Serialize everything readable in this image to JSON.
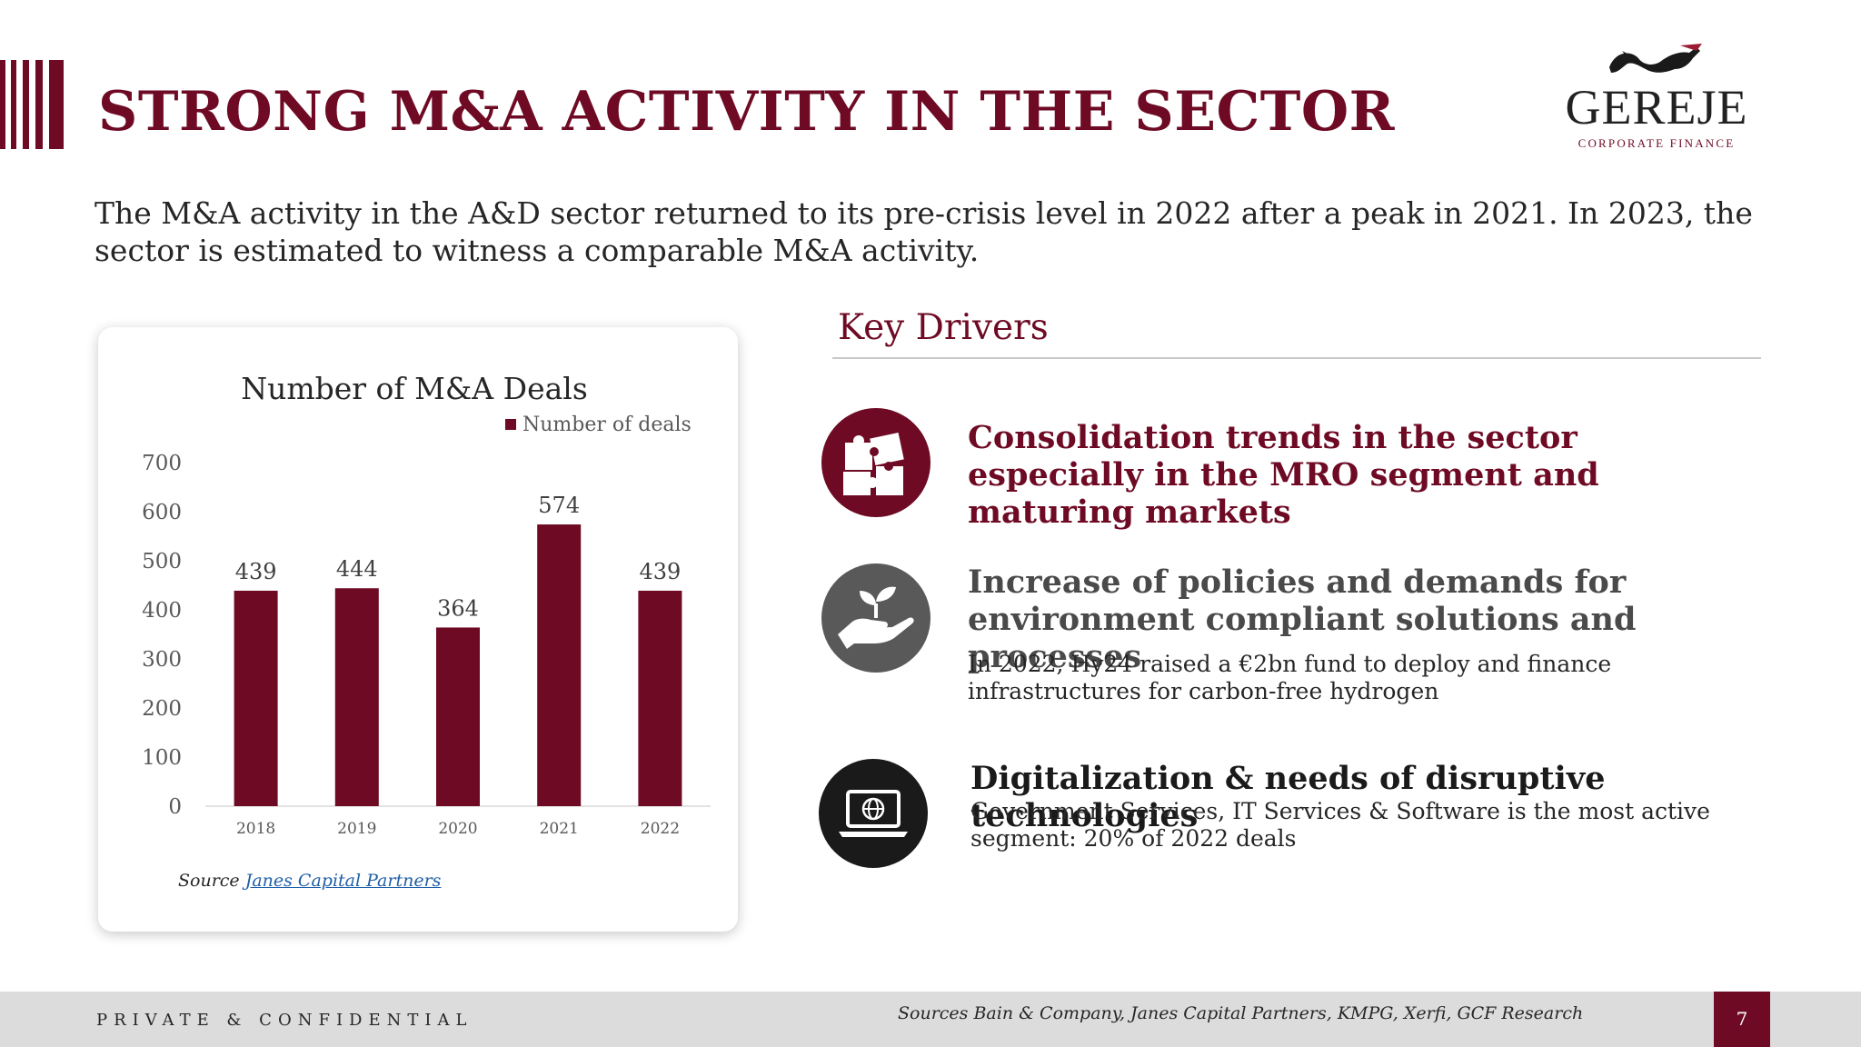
{
  "title": "STRONG M&A ACTIVITY IN THE SECTOR",
  "logo": {
    "brand": "GEREJE",
    "subtitle": "CORPORATE FINANCE"
  },
  "intro": "The M&A activity in the A&D sector returned to its pre-crisis level in 2022 after a peak in 2021. In 2023, the sector is estimated to witness a comparable M&A activity.",
  "chart_source": {
    "prefix": "Source",
    "link": "Janes Capital Partners"
  },
  "chart_data": {
    "type": "bar",
    "title": "Number of M&A Deals",
    "legend": "Number of deals",
    "legend_position": "top-right",
    "categories": [
      "2018",
      "2019",
      "2020",
      "2021",
      "2022"
    ],
    "values": [
      439,
      444,
      364,
      574,
      439
    ],
    "ylim": [
      0,
      700
    ],
    "yticks": [
      "0",
      "100",
      "200",
      "300",
      "400",
      "500",
      "600",
      "700"
    ],
    "bar_color": "#6e0a24",
    "grid": false
  },
  "drivers": {
    "title": "Key Drivers",
    "items": [
      {
        "icon": "puzzle-icon",
        "heading": "Consolidation trends in the sector especially in the MRO segment and maturing markets",
        "body": "",
        "color": "#6e0a24"
      },
      {
        "icon": "plant-hand-icon",
        "heading": "Increase of policies and demands for environment compliant solutions and processes",
        "body": "In 2022, Hy24 raised a €2bn fund to deploy and finance infrastructures for carbon-free hydrogen",
        "color": "#595959"
      },
      {
        "icon": "laptop-globe-icon",
        "heading": "Digitalization & needs of disruptive technologies",
        "body": "Government Services, IT Services & Software is the most active segment: 20% of 2022 deals",
        "color": "#1a1a1a"
      }
    ]
  },
  "footer": {
    "confidential": "PRIVATE & CONFIDENTIAL",
    "sources": "Sources  Bain & Company, Janes Capital Partners, KMPG, Xerfi, GCF Research",
    "page_number": "7"
  }
}
